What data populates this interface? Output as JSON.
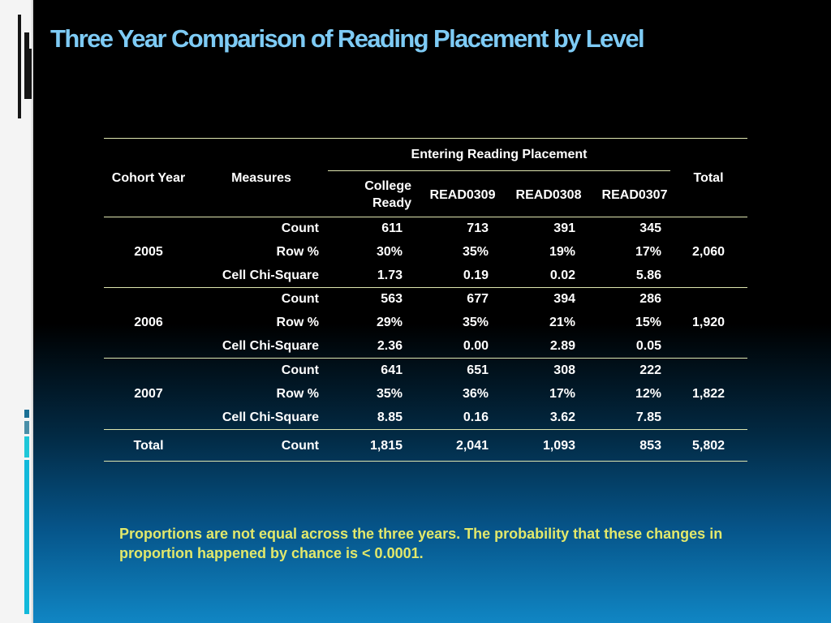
{
  "slide": {
    "title": "Three Year Comparison of  Reading Placement by Level",
    "note": "Proportions are not equal across the three years.  The probability that these changes in proportion happened by chance is < 0.0001."
  },
  "table": {
    "group_header": "Entering Reading Placement",
    "headers": {
      "cohort_year": "Cohort Year",
      "measures": "Measures",
      "college_ready_line1": "College",
      "college_ready_line2": "Ready",
      "read0309": "READ0309",
      "read0308": "READ0308",
      "read0307": "READ0307",
      "total": "Total"
    },
    "groups": [
      {
        "year": "2005",
        "total": "2,060",
        "rows": [
          {
            "measure": "Count",
            "values": [
              "611",
              "713",
              "391",
              "345"
            ]
          },
          {
            "measure": "Row %",
            "values": [
              "30%",
              "35%",
              "19%",
              "17%"
            ]
          },
          {
            "measure": "Cell Chi-Square",
            "values": [
              "1.73",
              "0.19",
              "0.02",
              "5.86"
            ]
          }
        ]
      },
      {
        "year": "2006",
        "total": "1,920",
        "rows": [
          {
            "measure": "Count",
            "values": [
              "563",
              "677",
              "394",
              "286"
            ]
          },
          {
            "measure": "Row %",
            "values": [
              "29%",
              "35%",
              "21%",
              "15%"
            ]
          },
          {
            "measure": "Cell Chi-Square",
            "values": [
              "2.36",
              "0.00",
              "2.89",
              "0.05"
            ]
          }
        ]
      },
      {
        "year": "2007",
        "total": "1,822",
        "rows": [
          {
            "measure": "Count",
            "values": [
              "641",
              "651",
              "308",
              "222"
            ]
          },
          {
            "measure": "Row %",
            "values": [
              "35%",
              "36%",
              "17%",
              "12%"
            ]
          },
          {
            "measure": "Cell Chi-Square",
            "values": [
              "8.85",
              "0.16",
              "3.62",
              "7.85"
            ]
          }
        ]
      }
    ],
    "total_row": {
      "label": "Total",
      "measure": "Count",
      "values": [
        "1,815",
        "2,041",
        "1,093",
        "853"
      ],
      "total": "5,802"
    }
  },
  "colors": {
    "title": "#7ecbf5",
    "note": "#e2e86b",
    "rule": "#dfe6b0",
    "text": "#ffffff"
  }
}
